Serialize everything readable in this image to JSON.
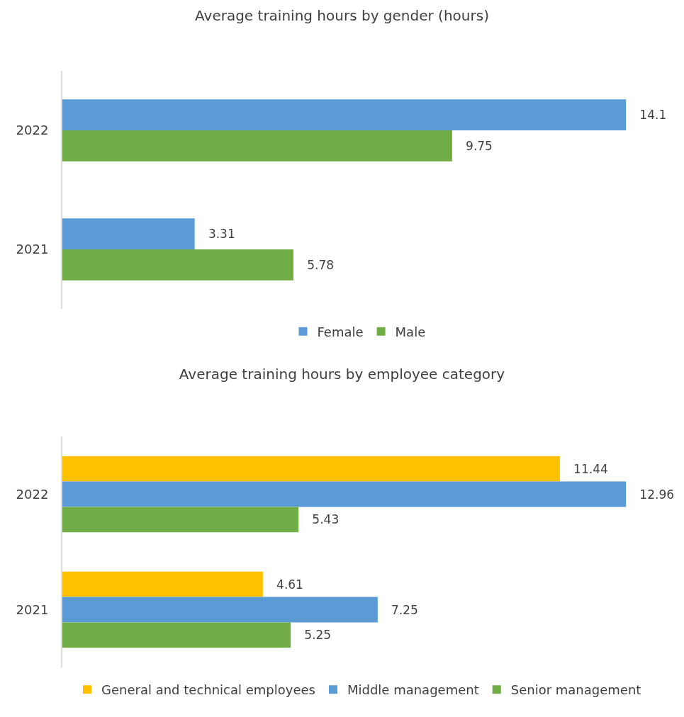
{
  "chart_data": [
    {
      "type": "bar",
      "orientation": "horizontal",
      "title": "Average training hours by gender (hours)",
      "categories": [
        "2022",
        "2021"
      ],
      "series": [
        {
          "name": "Female",
          "color": "#5b9bd5",
          "values": [
            14.1,
            3.31
          ]
        },
        {
          "name": "Male",
          "color": "#70ad47",
          "values": [
            9.75,
            5.78
          ]
        }
      ],
      "data_labels": true,
      "grid": false,
      "legend": "bottom",
      "tick_labels": "y"
    },
    {
      "type": "bar",
      "orientation": "horizontal",
      "title": "Average training hours by employee category",
      "categories": [
        "2022",
        "2021"
      ],
      "series": [
        {
          "name": "General and technical employees",
          "color": "#ffc000",
          "values": [
            11.44,
            4.61
          ]
        },
        {
          "name": "Middle management",
          "color": "#5b9bd5",
          "values": [
            12.96,
            7.25
          ]
        },
        {
          "name": "Senior management",
          "color": "#70ad47",
          "values": [
            5.43,
            5.25
          ]
        }
      ],
      "data_labels": true,
      "grid": false,
      "legend": "bottom",
      "tick_labels": "y"
    }
  ]
}
